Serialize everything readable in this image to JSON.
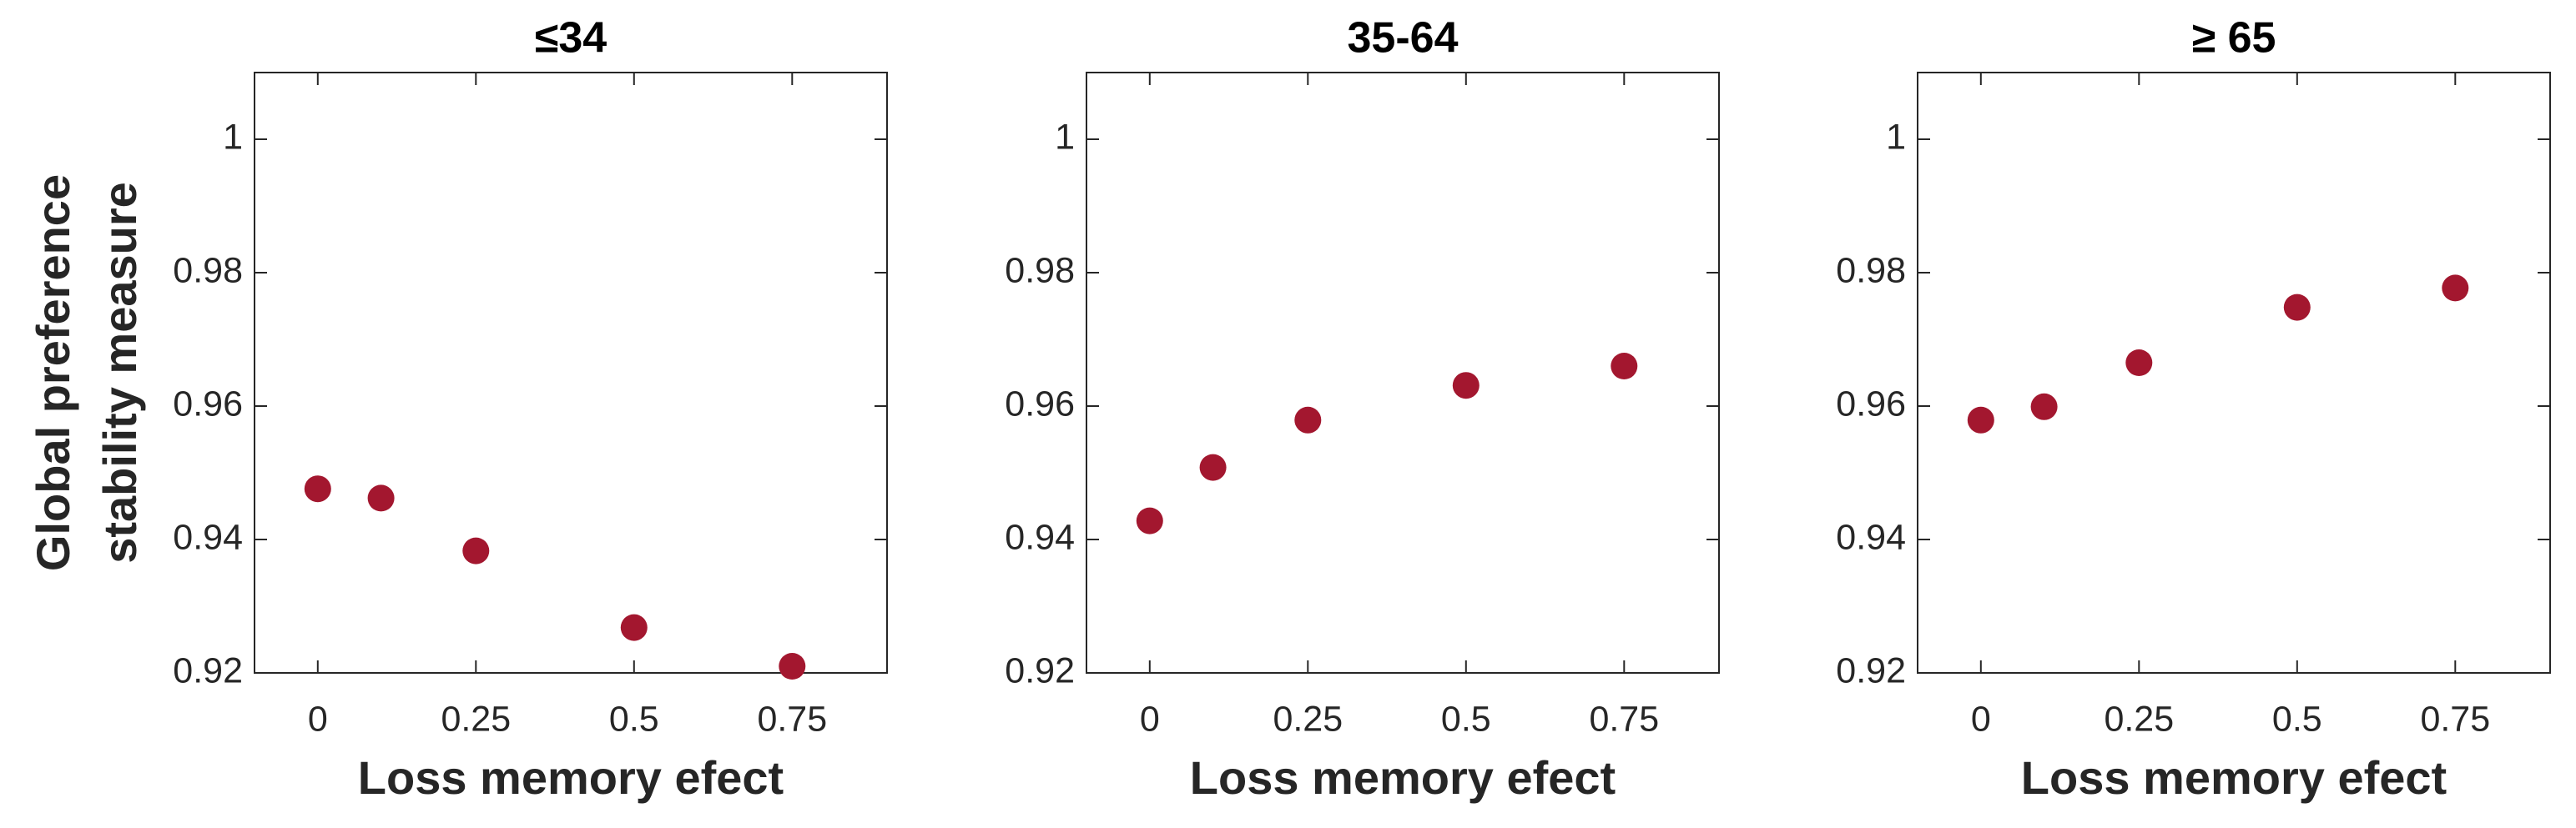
{
  "chart_data": [
    {
      "type": "scatter",
      "title": "≤34",
      "xlabel": "Loss memory efect",
      "ylabel": [
        "Global preference",
        "stability measure"
      ],
      "series": [
        {
          "color": "#a3172f",
          "x": [
            0,
            0.1,
            0.25,
            0.5,
            0.75
          ],
          "values": [
            0.9476,
            0.9462,
            0.9383,
            0.9268,
            0.921
          ]
        }
      ],
      "xlim": [
        -0.1,
        0.9
      ],
      "xticks": [
        0,
        0.25,
        0.5,
        0.75
      ],
      "ylim": [
        0.92,
        1.01
      ],
      "yticks": [
        0.92,
        0.94,
        0.96,
        0.98,
        1
      ]
    },
    {
      "type": "scatter",
      "title": "35-64",
      "xlabel": "Loss memory efect",
      "series": [
        {
          "color": "#a3172f",
          "x": [
            0,
            0.1,
            0.25,
            0.5,
            0.75
          ],
          "values": [
            0.9428,
            0.9508,
            0.9579,
            0.9631,
            0.966
          ]
        }
      ],
      "xlim": [
        -0.1,
        0.9
      ],
      "xticks": [
        0,
        0.25,
        0.5,
        0.75
      ],
      "ylim": [
        0.92,
        1.01
      ],
      "yticks": [
        0.92,
        0.94,
        0.96,
        0.98,
        1
      ]
    },
    {
      "type": "scatter",
      "title": "≥ 65",
      "xlabel": "Loss memory efect",
      "series": [
        {
          "color": "#a3172f",
          "x": [
            0,
            0.1,
            0.25,
            0.5,
            0.75
          ],
          "values": [
            0.9579,
            0.9599,
            0.9665,
            0.9748,
            0.9777
          ]
        }
      ],
      "xlim": [
        -0.1,
        0.9
      ],
      "xticks": [
        0,
        0.25,
        0.5,
        0.75
      ],
      "ylim": [
        0.92,
        1.01
      ],
      "yticks": [
        0.92,
        0.94,
        0.96,
        0.98,
        1
      ]
    }
  ]
}
